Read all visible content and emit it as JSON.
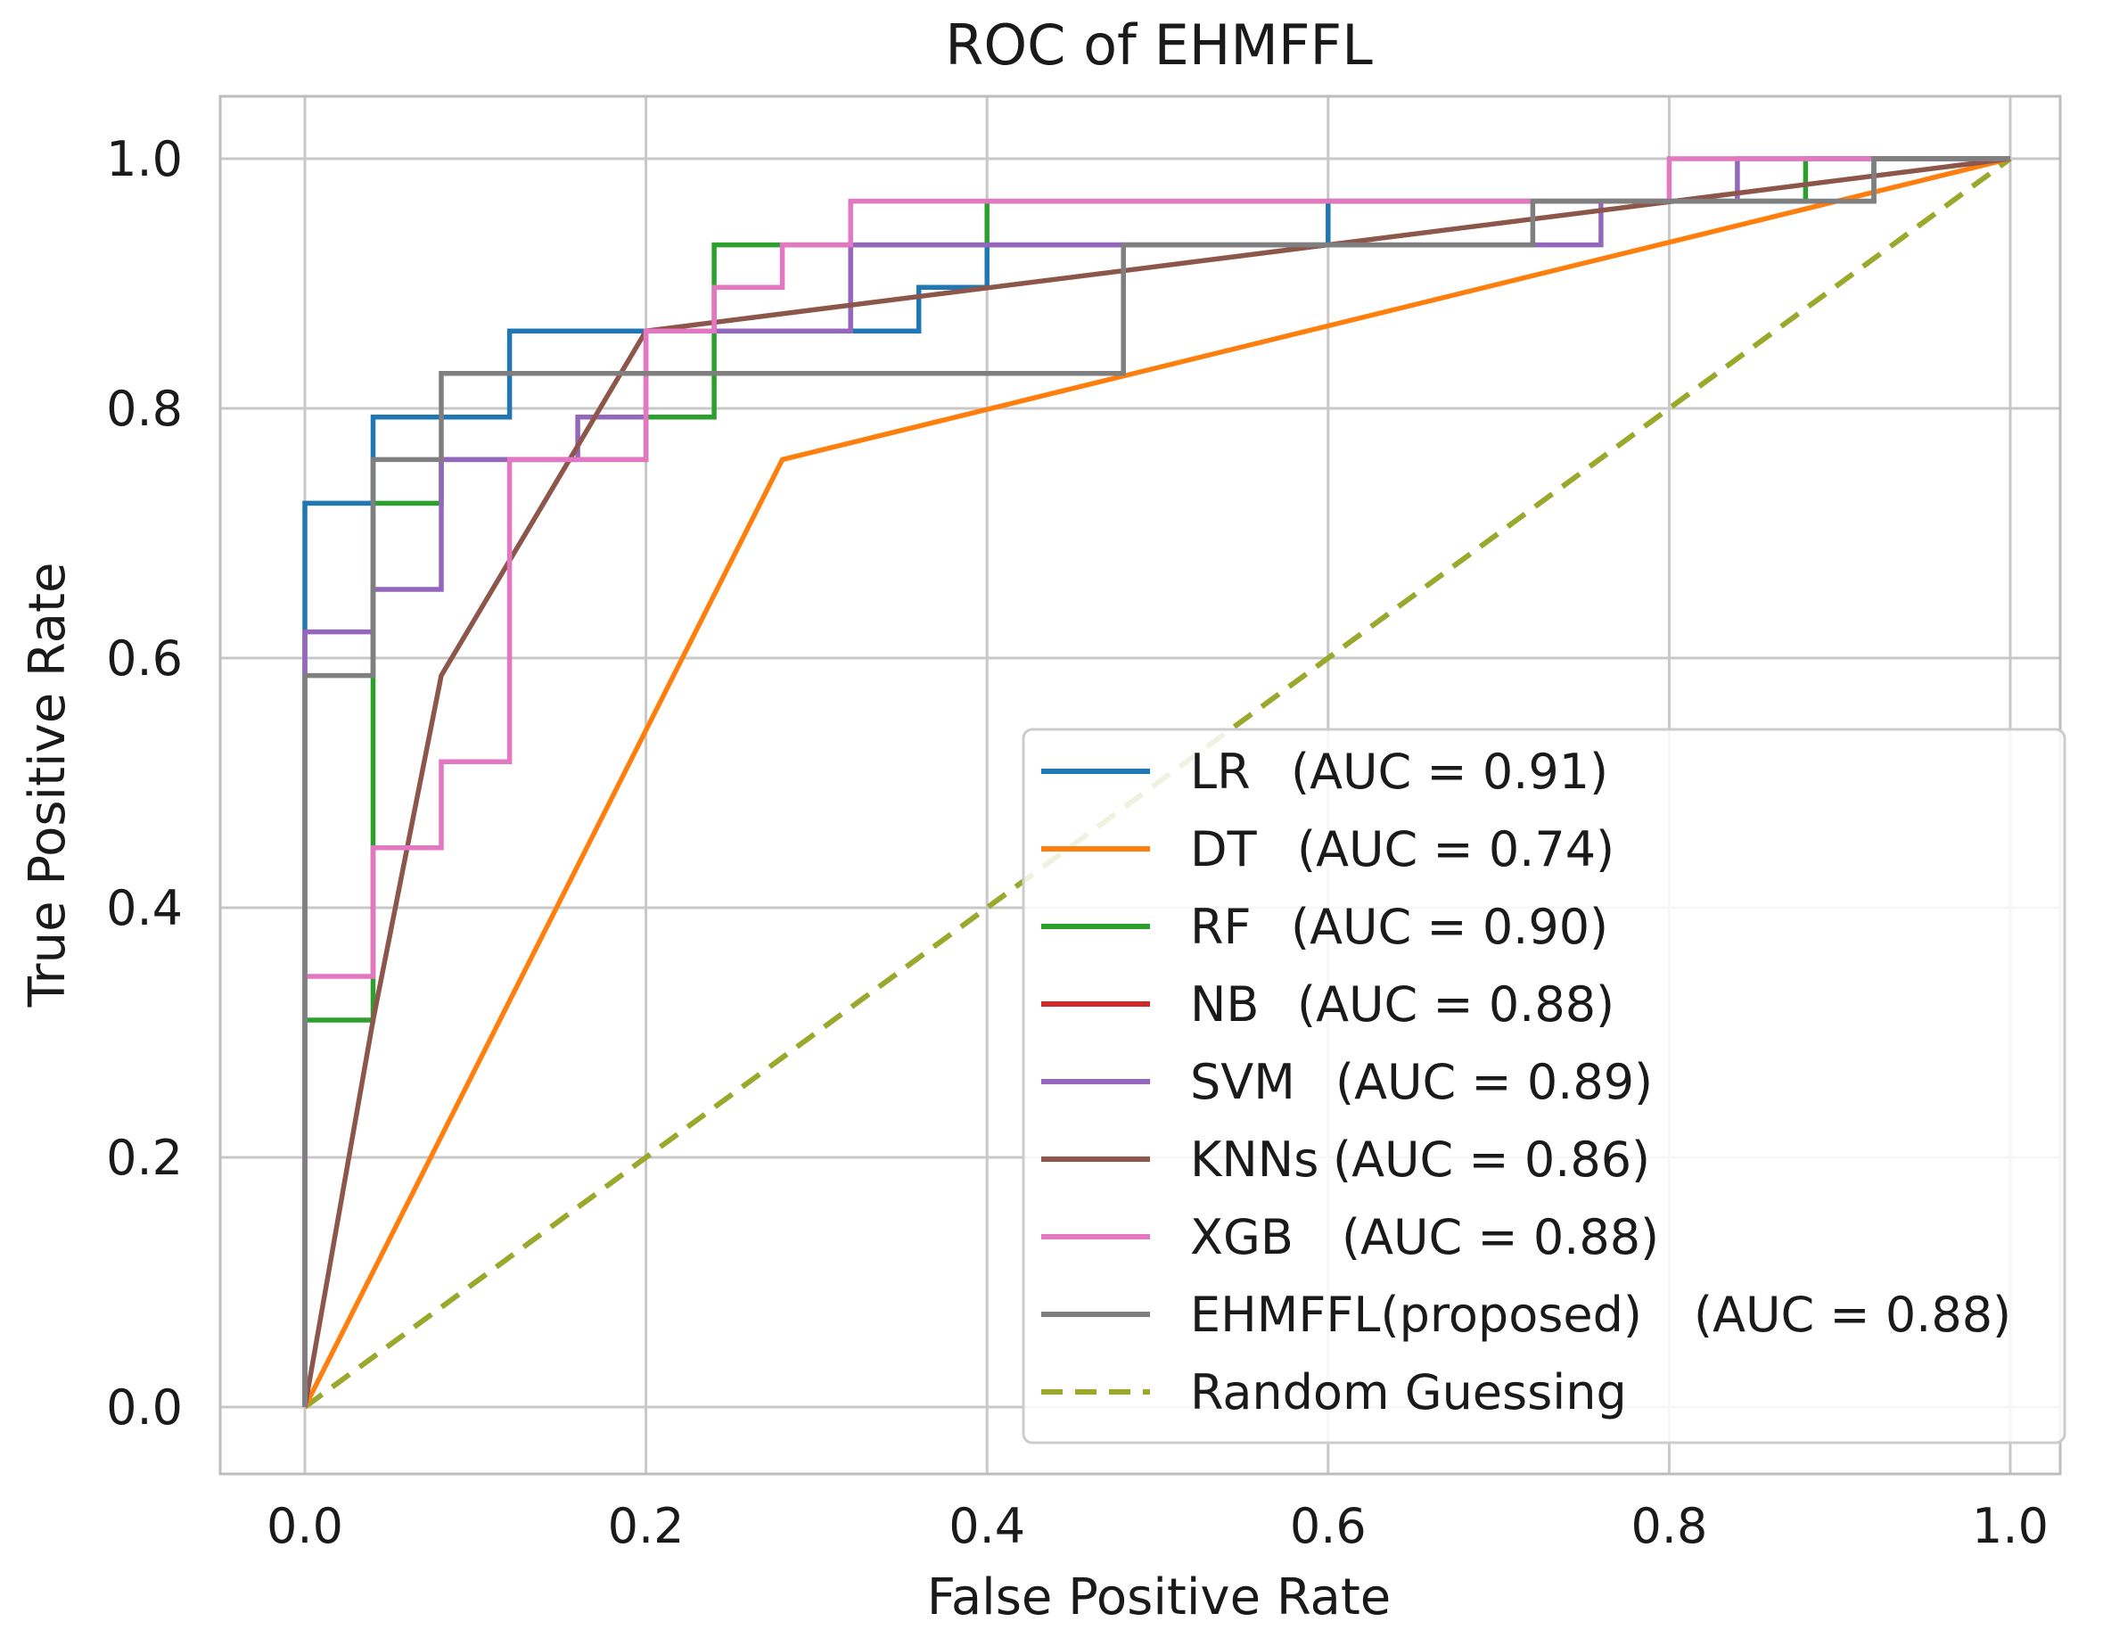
{
  "chart_data": {
    "type": "line",
    "title": "ROC of EHMFFL",
    "xlabel": "False Positive Rate",
    "ylabel": "True Positive Rate",
    "xlim": [
      -0.05,
      1.05
    ],
    "ylim": [
      -0.05,
      1.05
    ],
    "xticks": [
      "0.0",
      "0.2",
      "0.4",
      "0.6",
      "0.8",
      "1.0"
    ],
    "yticks": [
      "0.0",
      "0.2",
      "0.4",
      "0.6",
      "0.8",
      "1.0"
    ],
    "grid": true,
    "legend_position": "lower-right",
    "series": [
      {
        "name": "LR",
        "auc_text": "(AUC = 0.91)",
        "color": "#1f77b4",
        "x": [
          0,
          0,
          0.04,
          0.04,
          0.12,
          0.12,
          0.32,
          0.32,
          0.36,
          0.36,
          0.4,
          0.4,
          0.6,
          0.6,
          0.92,
          0.92,
          1.0
        ],
        "y": [
          0,
          0.724,
          0.724,
          0.793,
          0.793,
          0.862,
          0.862,
          0.862,
          0.862,
          0.897,
          0.897,
          0.931,
          0.931,
          0.966,
          0.966,
          1.0,
          1.0
        ]
      },
      {
        "name": "DT",
        "auc_text": "(AUC = 0.74)",
        "color": "#ff7f0e",
        "x": [
          0,
          0.28,
          1.0
        ],
        "y": [
          0,
          0.759,
          1.0
        ]
      },
      {
        "name": "RF",
        "auc_text": "(AUC = 0.90)",
        "color": "#2ca02c",
        "x": [
          0,
          0,
          0.04,
          0.04,
          0.08,
          0.08,
          0.2,
          0.2,
          0.24,
          0.24,
          0.28,
          0.28,
          0.4,
          0.4,
          0.88,
          0.88,
          1.0
        ],
        "y": [
          0,
          0.31,
          0.31,
          0.724,
          0.724,
          0.759,
          0.759,
          0.793,
          0.793,
          0.931,
          0.931,
          0.931,
          0.931,
          0.966,
          0.966,
          1.0,
          1.0
        ]
      },
      {
        "name": "NB",
        "auc_text": "(AUC = 0.88)",
        "color": "#d62728",
        "x": [],
        "y": []
      },
      {
        "name": "SVM",
        "auc_text": "(AUC = 0.89)",
        "color": "#9467bd",
        "x": [
          0,
          0,
          0.04,
          0.04,
          0.08,
          0.08,
          0.16,
          0.16,
          0.2,
          0.2,
          0.32,
          0.32,
          0.72,
          0.72,
          0.76,
          0.76,
          0.84,
          0.84,
          1.0
        ],
        "y": [
          0,
          0.621,
          0.621,
          0.655,
          0.655,
          0.759,
          0.759,
          0.793,
          0.793,
          0.862,
          0.862,
          0.931,
          0.931,
          0.931,
          0.931,
          0.966,
          0.966,
          1.0,
          1.0
        ]
      },
      {
        "name": "KNNs",
        "auc_text": "(AUC = 0.86)",
        "color": "#8c564b",
        "x": [
          0,
          0.04,
          0.08,
          0.2,
          1.0
        ],
        "y": [
          0,
          0.31,
          0.586,
          0.862,
          1.0
        ]
      },
      {
        "name": "XGB",
        "auc_text": "(AUC = 0.88)",
        "color": "#e377c2",
        "x": [
          0,
          0,
          0.04,
          0.04,
          0.08,
          0.08,
          0.12,
          0.12,
          0.2,
          0.2,
          0.24,
          0.24,
          0.28,
          0.28,
          0.32,
          0.32,
          0.8,
          0.8,
          1.0
        ],
        "y": [
          0,
          0.345,
          0.345,
          0.448,
          0.448,
          0.517,
          0.517,
          0.759,
          0.759,
          0.862,
          0.862,
          0.897,
          0.897,
          0.931,
          0.931,
          0.966,
          0.966,
          1.0,
          1.0
        ]
      },
      {
        "name": "EHMFFL(proposed)",
        "auc_text": "(AUC = 0.88)",
        "color": "#7f7f7f",
        "x": [
          0,
          0,
          0.04,
          0.04,
          0.08,
          0.08,
          0.48,
          0.48,
          0.72,
          0.72,
          0.92,
          0.92,
          1.0
        ],
        "y": [
          0,
          0.586,
          0.586,
          0.759,
          0.759,
          0.828,
          0.828,
          0.931,
          0.931,
          0.966,
          0.966,
          1.0,
          1.0
        ]
      }
    ],
    "reference": {
      "name": "Random Guessing",
      "color": "#9aa82c",
      "x": [
        0,
        1.0
      ],
      "y": [
        0,
        1.0
      ]
    }
  }
}
